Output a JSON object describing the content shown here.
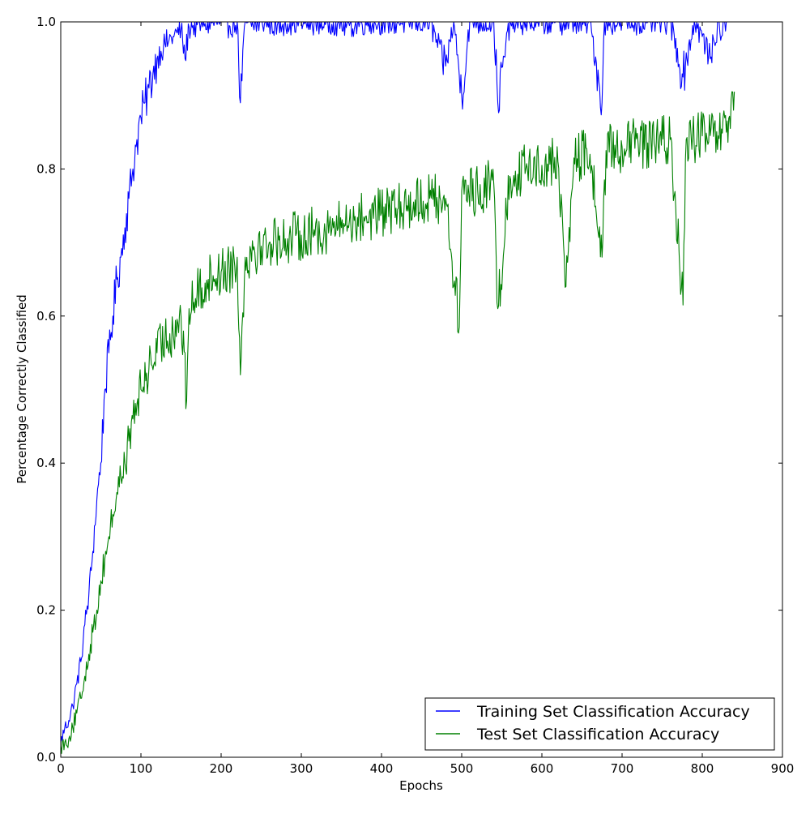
{
  "chart_data": {
    "type": "line",
    "title": "",
    "xlabel": "Epochs",
    "ylabel": "Percentage Correctly Classified",
    "xlim": [
      0,
      900
    ],
    "ylim": [
      0.0,
      1.0
    ],
    "xticks": [
      "0",
      "100",
      "200",
      "300",
      "400",
      "500",
      "600",
      "700",
      "800",
      "900"
    ],
    "yticks": [
      "0.0",
      "0.2",
      "0.4",
      "0.6",
      "0.8",
      "1.0"
    ],
    "grid": false,
    "legend_position": "lower-right",
    "series": [
      {
        "name": "Training Set Classification Accuracy",
        "color": "#0000ff",
        "x": [
          0,
          5,
          10,
          15,
          20,
          25,
          30,
          35,
          40,
          45,
          50,
          55,
          60,
          65,
          70,
          75,
          80,
          85,
          90,
          95,
          100,
          105,
          110,
          115,
          120,
          125,
          130,
          135,
          140,
          145,
          150,
          155,
          160,
          165,
          170,
          175,
          180,
          190,
          200,
          210,
          220,
          224,
          230,
          240,
          250,
          260,
          270,
          280,
          290,
          300,
          320,
          340,
          360,
          380,
          400,
          420,
          440,
          460,
          480,
          490,
          500,
          510,
          520,
          540,
          545,
          560,
          580,
          600,
          620,
          640,
          660,
          675,
          678,
          690,
          700,
          720,
          740,
          760,
          776,
          790,
          800,
          810,
          820,
          823,
          826,
          830,
          840
        ],
        "y": [
          0.02,
          0.04,
          0.05,
          0.07,
          0.1,
          0.13,
          0.18,
          0.22,
          0.28,
          0.35,
          0.4,
          0.5,
          0.55,
          0.6,
          0.65,
          0.68,
          0.72,
          0.76,
          0.8,
          0.84,
          0.87,
          0.89,
          0.91,
          0.93,
          0.95,
          0.96,
          0.97,
          0.975,
          0.98,
          0.985,
          0.99,
          0.95,
          0.993,
          0.995,
          0.996,
          0.997,
          0.998,
          0.999,
          1.0,
          0.995,
          1.0,
          0.89,
          1.0,
          0.995,
          1.0,
          1.0,
          0.995,
          1.0,
          1.0,
          1.0,
          1.0,
          1.0,
          0.995,
          1.0,
          1.0,
          1.0,
          1.0,
          1.0,
          0.94,
          1.0,
          0.9,
          1.0,
          1.0,
          1.0,
          0.89,
          1.0,
          1.0,
          1.0,
          1.0,
          1.0,
          1.0,
          0.89,
          1.0,
          1.0,
          1.0,
          1.0,
          1.0,
          1.0,
          0.925,
          1.0,
          0.98,
          0.95,
          1.0,
          0.975,
          1.0,
          1.0,
          null
        ],
        "noise_amplitude": 0.03
      },
      {
        "name": "Test Set Classification Accuracy",
        "color": "#008000",
        "x": [
          0,
          5,
          10,
          15,
          20,
          25,
          30,
          35,
          40,
          45,
          50,
          55,
          60,
          65,
          70,
          75,
          80,
          85,
          90,
          95,
          100,
          110,
          120,
          130,
          140,
          150,
          157,
          160,
          170,
          180,
          190,
          200,
          210,
          220,
          224,
          230,
          240,
          250,
          260,
          280,
          300,
          320,
          340,
          360,
          380,
          400,
          420,
          440,
          460,
          480,
          497,
          500,
          520,
          540,
          545,
          560,
          580,
          600,
          620,
          630,
          640,
          660,
          675,
          680,
          700,
          720,
          740,
          760,
          776,
          780,
          800,
          820,
          830,
          835,
          840
        ],
        "y": [
          0.015,
          0.02,
          0.025,
          0.04,
          0.06,
          0.08,
          0.11,
          0.14,
          0.17,
          0.2,
          0.24,
          0.27,
          0.3,
          0.33,
          0.36,
          0.38,
          0.4,
          0.43,
          0.46,
          0.48,
          0.5,
          0.53,
          0.55,
          0.57,
          0.58,
          0.6,
          0.485,
          0.61,
          0.63,
          0.645,
          0.655,
          0.66,
          0.665,
          0.68,
          0.52,
          0.68,
          0.69,
          0.695,
          0.7,
          0.705,
          0.71,
          0.715,
          0.72,
          0.73,
          0.735,
          0.74,
          0.745,
          0.755,
          0.76,
          0.76,
          0.585,
          0.77,
          0.77,
          0.78,
          0.61,
          0.79,
          0.8,
          0.805,
          0.81,
          0.64,
          0.815,
          0.82,
          0.68,
          0.825,
          0.83,
          0.835,
          0.835,
          0.84,
          0.615,
          0.84,
          0.845,
          0.845,
          0.85,
          0.855,
          0.905
        ],
        "noise_amplitude": 0.035
      }
    ]
  }
}
